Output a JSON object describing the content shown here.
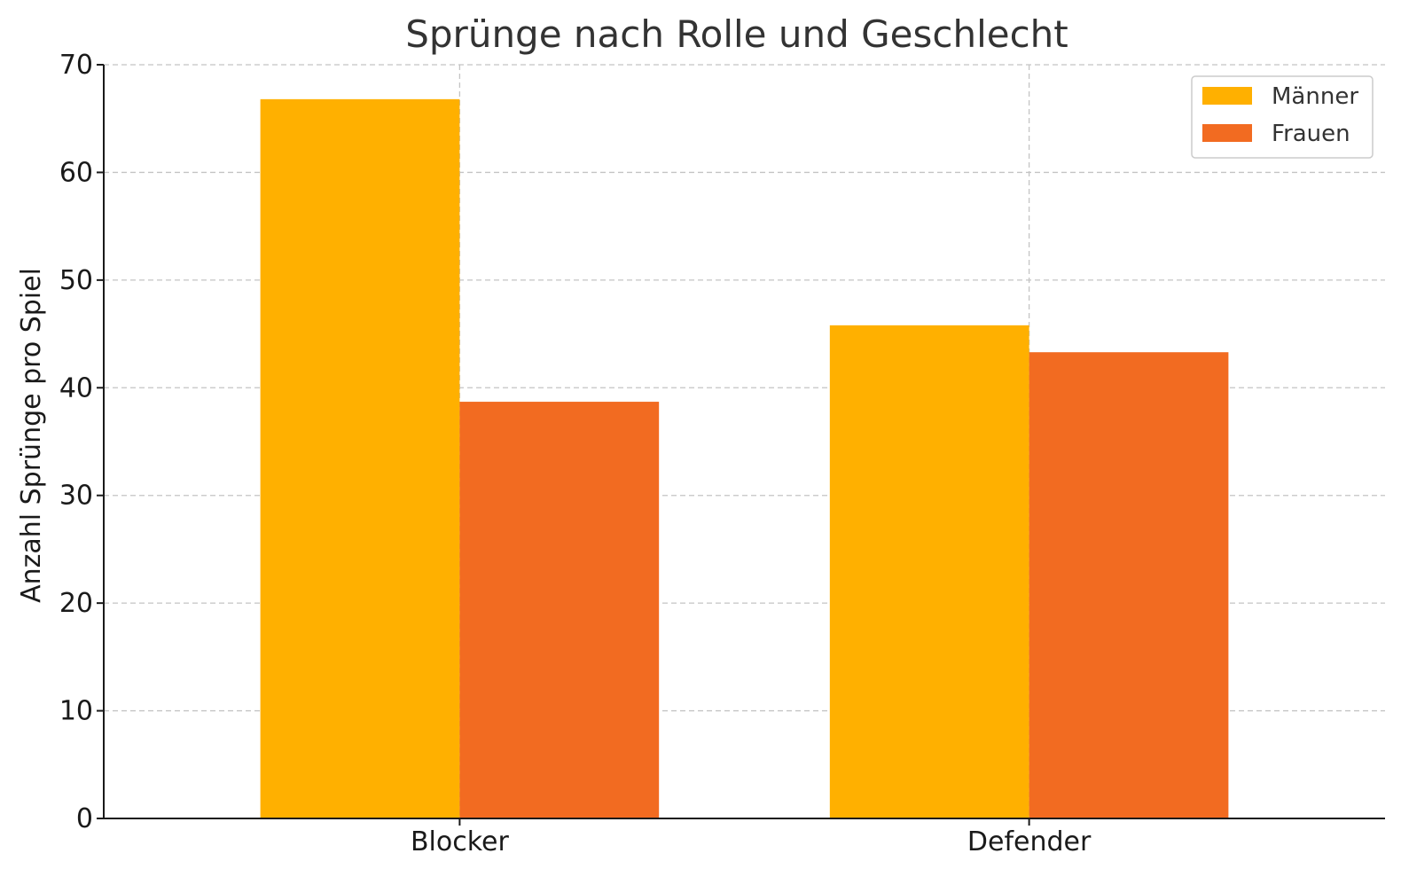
{
  "chart_data": {
    "type": "bar",
    "title": "Sprünge nach Rolle und Geschlecht",
    "xlabel": "",
    "ylabel": "Anzahl Sprünge pro Spiel",
    "categories": [
      "Blocker",
      "Defender"
    ],
    "series": [
      {
        "name": "Männer",
        "values": [
          66.8,
          45.8
        ],
        "color": "#FFB000"
      },
      {
        "name": "Frauen",
        "values": [
          38.7,
          43.3
        ],
        "color": "#F26B21"
      }
    ],
    "ylim": [
      0,
      70
    ],
    "yticks": [
      0,
      10,
      20,
      30,
      40,
      50,
      60,
      70
    ],
    "grid": true,
    "legend_position": "top-right"
  }
}
